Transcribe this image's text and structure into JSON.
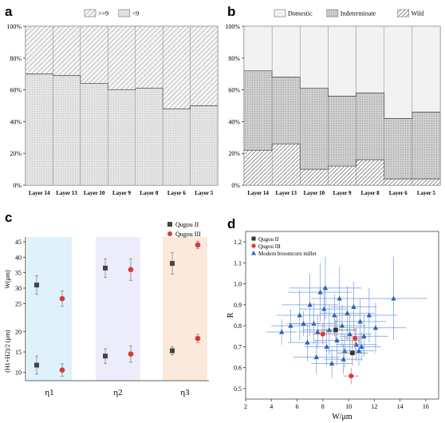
{
  "panels": {
    "a": "a",
    "b": "b",
    "c": "c",
    "d": "d"
  },
  "chart_data": [
    {
      "panel": "a",
      "type": "bar",
      "stacked": true,
      "categories": [
        "Layer 14",
        "Layer 13",
        "Layer 10",
        "Layer 9",
        "Layer 8",
        "Layer 6",
        "Layer 5"
      ],
      "series": [
        {
          "name": "<9",
          "values": [
            70,
            69,
            64,
            60,
            61,
            48,
            50
          ]
        },
        {
          "name": ">=9",
          "values": [
            30,
            31,
            36,
            40,
            39,
            52,
            50
          ]
        }
      ],
      "yticks": [
        "0%",
        "20%",
        "40%",
        "60%",
        "80%",
        "100%"
      ],
      "ylim": [
        0,
        100
      ],
      "legend": "top"
    },
    {
      "panel": "b",
      "type": "bar",
      "stacked": true,
      "categories": [
        "Layer 14",
        "Layer 13",
        "Layer 10",
        "Layer 9",
        "Layer 8",
        "Layer 6",
        "Layer 5"
      ],
      "series": [
        {
          "name": "Wild",
          "values": [
            22,
            26,
            10,
            12,
            16,
            4,
            4
          ]
        },
        {
          "name": "Indeterminate",
          "values": [
            50,
            42,
            51,
            44,
            42,
            38,
            42
          ]
        },
        {
          "name": "Domestic",
          "values": [
            28,
            32,
            39,
            44,
            42,
            58,
            54
          ]
        }
      ],
      "yticks": [
        "0%",
        "20%",
        "40%",
        "60%",
        "80%",
        "100%"
      ],
      "ylim": [
        0,
        100
      ],
      "legend": "top"
    },
    {
      "panel": "c",
      "type": "scatter",
      "groups": [
        "η1",
        "η2",
        "η3"
      ],
      "ylabel_top": "W(μm)",
      "ylabel_bottom": "(H1+H2)/2 (μm)",
      "yticks_top": [
        25,
        30,
        35,
        40,
        45
      ],
      "yticks_bottom": [
        10,
        15,
        20
      ],
      "ylim_top": [
        22.5,
        45
      ],
      "ylim_bottom": [
        8,
        22
      ],
      "series": [
        {
          "name": "Qugou II",
          "color": "#444444",
          "top": [
            {
              "g": 0,
              "y": 31,
              "err": 3
            },
            {
              "g": 1,
              "y": 36.5,
              "err": 3
            },
            {
              "g": 2,
              "y": 38,
              "err": 3.5
            }
          ],
          "bottom": [
            {
              "g": 0,
              "y": 11.8,
              "err": 2.2
            },
            {
              "g": 1,
              "y": 14,
              "err": 1.8
            },
            {
              "g": 2,
              "y": 15.3,
              "err": 1
            }
          ]
        },
        {
          "name": "Qugou III",
          "color": "#d9383a",
          "top": [
            {
              "g": 0,
              "y": 26.6,
              "err": 2.5
            },
            {
              "g": 1,
              "y": 36,
              "err": 3.5
            },
            {
              "g": 2,
              "y": 44,
              "err": 1.2
            }
          ],
          "bottom": [
            {
              "g": 0,
              "y": 10.6,
              "err": 1.5
            },
            {
              "g": 1,
              "y": 14.5,
              "err": 2
            },
            {
              "g": 2,
              "y": 18.3,
              "err": 1
            }
          ]
        }
      ],
      "band_colors": [
        "#dff1fb",
        "#ececfb",
        "#fbeadc"
      ],
      "legend": "top-right"
    },
    {
      "panel": "d",
      "type": "scatter",
      "xlabel": "W/μm",
      "ylabel": "R",
      "xticks": [
        2,
        4,
        6,
        8,
        10,
        12,
        14,
        16
      ],
      "yticks": [
        0.5,
        0.6,
        0.7,
        0.8,
        0.9,
        1.0,
        1.1,
        1.2
      ],
      "xlim": [
        2,
        17
      ],
      "ylim": [
        0.45,
        1.25
      ],
      "series": [
        {
          "name": "Qugou II",
          "marker": "square",
          "color": "#333333",
          "points": [
            [
              9,
              0.78,
              1.5,
              0.05
            ],
            [
              10.3,
              0.67,
              1.2,
              0.06
            ]
          ]
        },
        {
          "name": "Qugou III",
          "marker": "circle",
          "color": "#d9383a",
          "points": [
            [
              8,
              0.76,
              0.8,
              0.05
            ],
            [
              10.2,
              0.56,
              0.6,
              0.04
            ],
            [
              10.5,
              0.74,
              0.8,
              0.05
            ]
          ]
        },
        {
          "name": "Modern broomcorn millet",
          "marker": "triangle",
          "color": "#2e64b5",
          "points": [
            [
              4.8,
              0.77,
              1.2,
              0.06
            ],
            [
              5.5,
              0.8,
              1.5,
              0.08
            ],
            [
              6.2,
              0.85,
              1.8,
              0.12
            ],
            [
              6.8,
              0.72,
              1.5,
              0.09
            ],
            [
              7,
              0.9,
              2.2,
              0.15
            ],
            [
              7.3,
              0.81,
              1.7,
              0.1
            ],
            [
              7.5,
              0.65,
              1.8,
              0.08
            ],
            [
              7.8,
              0.96,
              2.5,
              0.14
            ],
            [
              8.1,
              0.88,
              1.9,
              0.11
            ],
            [
              8.3,
              0.7,
              1.7,
              0.09
            ],
            [
              8.5,
              0.78,
              2.1,
              0.12
            ],
            [
              8.7,
              0.62,
              1.6,
              0.07
            ],
            [
              8.9,
              0.85,
              2,
              0.1
            ],
            [
              9.1,
              0.73,
              1.8,
              0.12
            ],
            [
              9.3,
              0.93,
              2.2,
              0.15
            ],
            [
              9.5,
              0.8,
              1.9,
              0.1
            ],
            [
              9.7,
              0.68,
              1.5,
              0.08
            ],
            [
              9.9,
              0.86,
              2.1,
              0.13
            ],
            [
              10.1,
              0.76,
              1.7,
              0.09
            ],
            [
              10.4,
              0.89,
              1.8,
              0.12
            ],
            [
              10.6,
              0.71,
              1.6,
              0.08
            ],
            [
              10.9,
              0.82,
              2,
              0.11
            ],
            [
              11.2,
              0.75,
              1.9,
              0.1
            ],
            [
              11.6,
              0.85,
              2.2,
              0.13
            ],
            [
              12.1,
              0.79,
              2.4,
              0.12
            ],
            [
              13.5,
              0.93,
              2.6,
              0.2
            ],
            [
              8.2,
              0.98,
              2.8,
              0.15
            ],
            [
              9.6,
              0.64,
              1.5,
              0.07
            ],
            [
              7.6,
              0.77,
              1.4,
              0.08
            ],
            [
              11,
              0.7,
              1.5,
              0.07
            ],
            [
              6.5,
              0.81,
              1.3,
              0.06
            ],
            [
              10.8,
              0.68,
              1.2,
              0.07
            ]
          ]
        }
      ],
      "legend": "top-left"
    }
  ]
}
